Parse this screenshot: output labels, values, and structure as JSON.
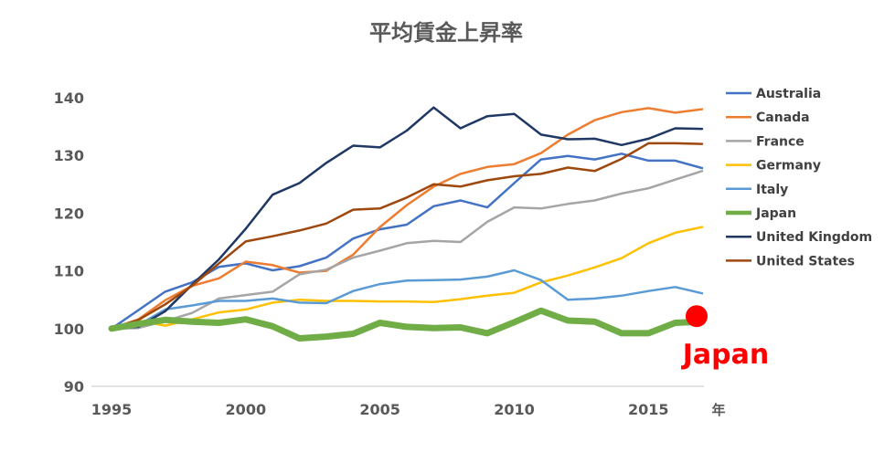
{
  "chart_data": {
    "type": "line",
    "title": "平均賃金上昇率",
    "xlabel": "年",
    "ylabel": "",
    "x": [
      1995,
      1996,
      1997,
      1998,
      1999,
      2000,
      2001,
      2002,
      2003,
      2004,
      2005,
      2006,
      2007,
      2008,
      2009,
      2010,
      2011,
      2012,
      2013,
      2014,
      2015,
      2016,
      2017
    ],
    "xlim": [
      1995,
      2017
    ],
    "ylim": [
      90,
      140
    ],
    "x_ticks": [
      1995,
      2000,
      2005,
      2010,
      2015
    ],
    "y_ticks": [
      90,
      100,
      110,
      120,
      130,
      140
    ],
    "grid": false,
    "legend": "right",
    "series": [
      {
        "name": "Australia",
        "color": "#4472c4",
        "width": 2.5,
        "values": [
          100.0,
          103.2,
          106.4,
          108.0,
          110.7,
          111.3,
          110.1,
          110.8,
          112.3,
          115.6,
          117.2,
          118.0,
          121.2,
          122.2,
          121.0,
          125.2,
          129.3,
          129.9,
          129.3,
          130.3,
          129.1,
          129.1,
          127.8
        ]
      },
      {
        "name": "Canada",
        "color": "#ed7d31",
        "width": 2.5,
        "values": [
          100.0,
          101.6,
          104.9,
          107.4,
          108.7,
          111.6,
          111.0,
          109.7,
          110.0,
          112.8,
          117.6,
          121.4,
          124.6,
          126.8,
          128.0,
          128.5,
          130.4,
          133.6,
          136.1,
          137.5,
          138.2,
          137.4,
          138.0
        ]
      },
      {
        "name": "France",
        "color": "#a5a5a5",
        "width": 2.5,
        "values": [
          100.0,
          100.1,
          101.3,
          102.7,
          105.2,
          105.8,
          106.4,
          109.4,
          110.2,
          112.3,
          113.5,
          114.8,
          115.2,
          115.0,
          118.5,
          121.0,
          120.8,
          121.6,
          122.2,
          123.4,
          124.3,
          125.8,
          127.3
        ]
      },
      {
        "name": "Germany",
        "color": "#ffc000",
        "width": 2.5,
        "values": [
          100.0,
          101.4,
          100.5,
          101.6,
          102.8,
          103.3,
          104.5,
          105.0,
          104.8,
          104.8,
          104.7,
          104.7,
          104.6,
          105.1,
          105.7,
          106.2,
          108.0,
          109.2,
          110.6,
          112.2,
          114.8,
          116.6,
          117.6
        ]
      },
      {
        "name": "Italy",
        "color": "#5b9bd5",
        "width": 2.5,
        "values": [
          100.0,
          100.6,
          103.3,
          104.0,
          104.8,
          104.8,
          105.2,
          104.5,
          104.4,
          106.5,
          107.7,
          108.3,
          108.4,
          108.5,
          109.0,
          110.1,
          108.4,
          105.0,
          105.2,
          105.7,
          106.5,
          107.2,
          106.1
        ]
      },
      {
        "name": "Japan",
        "color": "#70ad47",
        "width": 7,
        "values": [
          100.0,
          100.8,
          101.5,
          101.2,
          101.0,
          101.6,
          100.4,
          98.3,
          98.6,
          99.1,
          101.0,
          100.3,
          100.1,
          100.2,
          99.2,
          101.1,
          103.1,
          101.4,
          101.2,
          99.2,
          99.2,
          101.0,
          101.2
        ]
      },
      {
        "name": "United Kingdom",
        "color": "#203864",
        "width": 2.5,
        "values": [
          100.0,
          100.3,
          103.0,
          107.6,
          112.0,
          117.3,
          123.2,
          125.2,
          128.7,
          131.7,
          131.4,
          134.3,
          138.3,
          134.7,
          136.8,
          137.2,
          133.6,
          132.8,
          132.9,
          131.8,
          132.9,
          134.7,
          134.6
        ]
      },
      {
        "name": "United States",
        "color": "#9e480e",
        "width": 2.5,
        "values": [
          100.0,
          101.5,
          104.2,
          107.4,
          111.3,
          115.1,
          116.0,
          117.0,
          118.2,
          120.6,
          120.8,
          122.7,
          125.0,
          124.6,
          125.7,
          126.4,
          126.8,
          127.9,
          127.3,
          129.4,
          132.1,
          132.1,
          132.0
        ]
      }
    ],
    "annotation": {
      "text": "Japan",
      "x": 2017,
      "y": 101.2,
      "color": "#ff0000"
    }
  }
}
